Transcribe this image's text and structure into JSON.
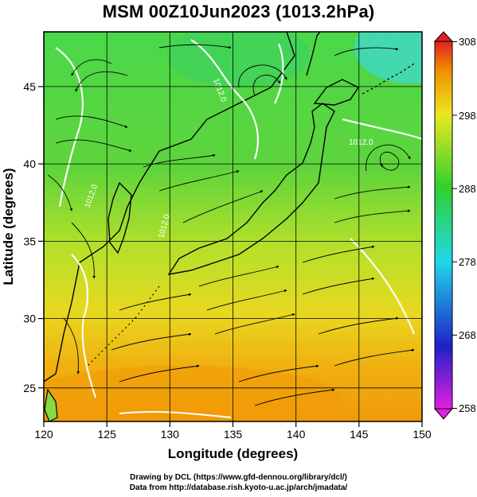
{
  "title": "MSM 00Z10Jun2023 (1013.2hPa)",
  "xlabel": "Longitude (degrees)",
  "ylabel": "Latitude  (degrees)",
  "x_ticks": [
    "120",
    "125",
    "130",
    "135",
    "140",
    "145",
    "150"
  ],
  "y_ticks": [
    "25",
    "30",
    "35",
    "40",
    "45"
  ],
  "x_range": [
    120,
    150
  ],
  "y_range": [
    22.4,
    47.6
  ],
  "colorbar": {
    "ticks": [
      "258",
      "268",
      "278",
      "288",
      "298",
      "308"
    ],
    "range": [
      258,
      308
    ],
    "colors": [
      "#e020e0",
      "#2020c8",
      "#20d8e8",
      "#30d030",
      "#e8e820",
      "#f09000",
      "#e02020"
    ]
  },
  "isobar_labels": [
    "1012.0",
    "1012.0",
    "1012.0",
    "1012.0"
  ],
  "credits": [
    "Drawing by DCL (https://www.gfd-dennou.org/library/dcl/)",
    "Data from http://database.rish.kyoto-u.ac.jp/arch/jmadata/"
  ]
}
